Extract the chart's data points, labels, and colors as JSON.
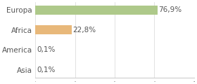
{
  "categories": [
    "Europa",
    "Africa",
    "America",
    "Asia"
  ],
  "values": [
    76.9,
    22.8,
    0.1,
    0.1
  ],
  "bar_colors": [
    "#aec98a",
    "#e8b87a",
    "#aec98a",
    "#aec98a"
  ],
  "labels": [
    "76,9%",
    "22,8%",
    "0,1%",
    "0,1%"
  ],
  "xlim": [
    0,
    100
  ],
  "background_color": "#ffffff",
  "bar_height": 0.45,
  "label_fontsize": 7.5,
  "tick_fontsize": 7.5,
  "grid_color": "#dddddd",
  "spine_color": "#cccccc",
  "text_color": "#555555"
}
